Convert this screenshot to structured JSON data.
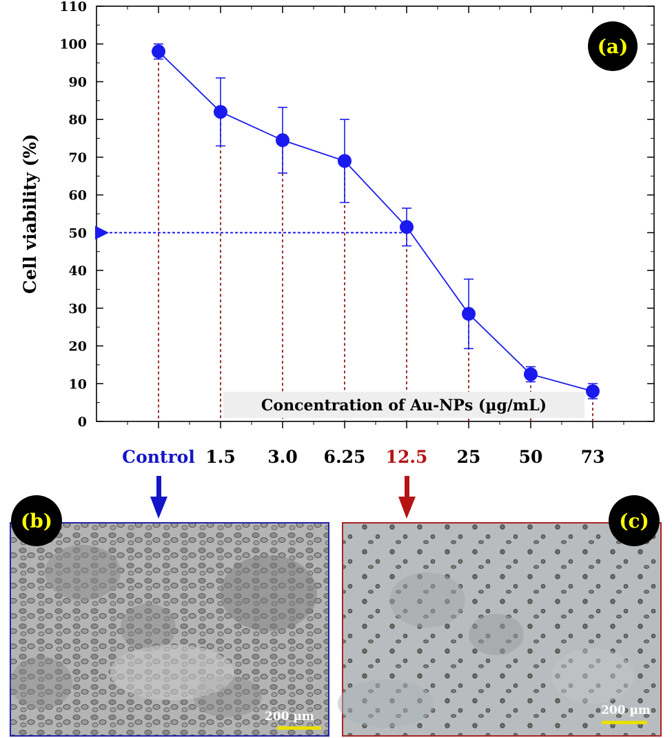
{
  "chart_data": {
    "type": "line",
    "panel_label": "(a)",
    "ylabel": "Cell viability (%)",
    "xlabel": "Concentration of Au-NPs (µg/mL)",
    "ylim": [
      0,
      110
    ],
    "yticks": [
      0,
      10,
      20,
      30,
      40,
      50,
      60,
      70,
      80,
      90,
      100,
      110
    ],
    "categories": [
      "Control",
      "1.5",
      "3.0",
      "6.25",
      "12.5",
      "25",
      "50",
      "73"
    ],
    "category_colors": [
      "#1414c8",
      "#000000",
      "#000000",
      "#000000",
      "#b41414",
      "#000000",
      "#000000",
      "#000000"
    ],
    "series": [
      {
        "values": [
          98,
          82,
          74.5,
          69,
          51.5,
          28.5,
          12.5,
          8
        ],
        "error": [
          2,
          9,
          8.7,
          11,
          5,
          9.2,
          2,
          2
        ]
      }
    ],
    "ic50": {
      "y": 50,
      "category": "12.5"
    },
    "colors": {
      "series": "#1a1aee",
      "dotted_guides": "#8b1a1a",
      "ic50_arrow": "#1a1aee",
      "panel_b_border": "#2222aa",
      "panel_c_border": "#aa2222",
      "scale_bar": "#e8e000",
      "panel_label_text": "#ffff00",
      "panel_label_bg": "#000000"
    }
  },
  "panel_b": {
    "label": "(b)",
    "scale_bar_text": "200 µm",
    "arrow_from": "Control"
  },
  "panel_c": {
    "label": "(c)",
    "scale_bar_text": "200 µm",
    "arrow_from": "12.5"
  }
}
